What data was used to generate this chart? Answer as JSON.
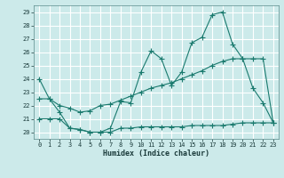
{
  "xlabel": "Humidex (Indice chaleur)",
  "bg_color": "#cceaea",
  "grid_color": "#ffffff",
  "line_color": "#1a7a6e",
  "xlim": [
    -0.5,
    23.5
  ],
  "ylim": [
    19.5,
    29.5
  ],
  "yticks": [
    20,
    21,
    22,
    23,
    24,
    25,
    26,
    27,
    28,
    29
  ],
  "xticks": [
    0,
    1,
    2,
    3,
    4,
    5,
    6,
    7,
    8,
    9,
    10,
    11,
    12,
    13,
    14,
    15,
    16,
    17,
    18,
    19,
    20,
    21,
    22,
    23
  ],
  "line1_x": [
    0,
    1,
    2,
    3,
    4,
    5,
    6,
    7,
    8,
    9,
    10,
    11,
    12,
    13,
    14,
    15,
    16,
    17,
    18,
    19,
    20,
    21,
    22,
    23
  ],
  "line1_y": [
    24.0,
    22.5,
    21.5,
    20.3,
    20.2,
    20.0,
    20.0,
    20.3,
    22.3,
    22.2,
    24.5,
    26.1,
    25.5,
    23.5,
    24.5,
    26.7,
    27.1,
    28.8,
    29.0,
    26.6,
    25.5,
    23.3,
    22.2,
    20.7
  ],
  "line2_x": [
    0,
    1,
    2,
    3,
    4,
    5,
    6,
    7,
    8,
    9,
    10,
    11,
    12,
    13,
    14,
    15,
    16,
    17,
    18,
    19,
    20,
    21,
    22,
    23
  ],
  "line2_y": [
    21.0,
    21.0,
    21.0,
    20.3,
    20.2,
    20.0,
    20.0,
    20.0,
    20.3,
    20.3,
    20.4,
    20.4,
    20.4,
    20.4,
    20.4,
    20.5,
    20.5,
    20.5,
    20.5,
    20.6,
    20.7,
    20.7,
    20.7,
    20.7
  ],
  "line3_x": [
    0,
    1,
    2,
    3,
    4,
    5,
    6,
    7,
    8,
    9,
    10,
    11,
    12,
    13,
    14,
    15,
    16,
    17,
    18,
    19,
    20,
    21,
    22,
    23
  ],
  "line3_y": [
    22.5,
    22.5,
    22.0,
    21.8,
    21.5,
    21.6,
    22.0,
    22.1,
    22.4,
    22.7,
    23.0,
    23.3,
    23.5,
    23.7,
    24.0,
    24.3,
    24.6,
    25.0,
    25.3,
    25.5,
    25.5,
    25.5,
    25.5,
    20.7
  ]
}
